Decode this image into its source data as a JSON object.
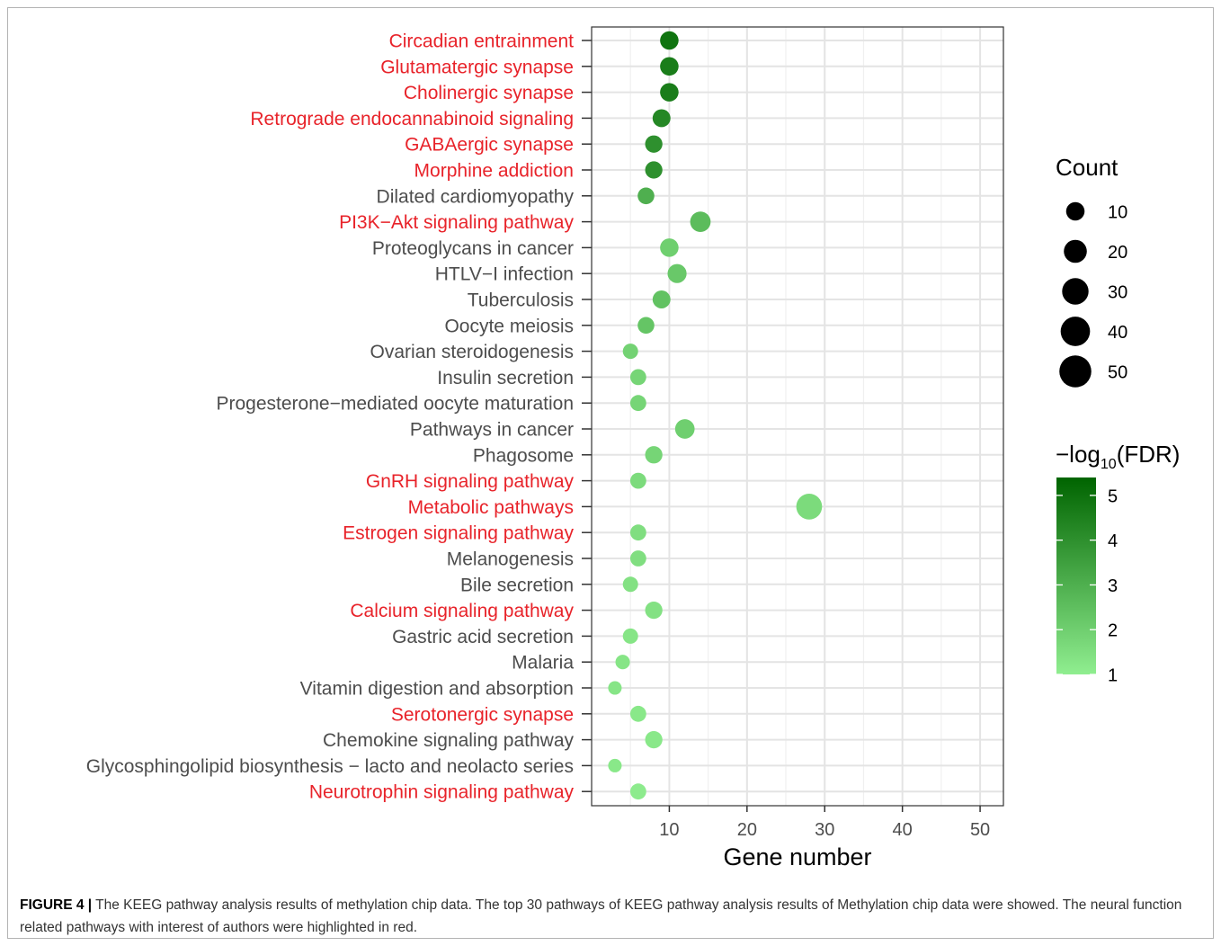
{
  "caption": {
    "label": "FIGURE 4 |",
    "text": "The KEEG pathway analysis results of methylation chip data. The top 30 pathways of KEEG pathway analysis results of Methylation chip data were showed. The neural function related pathways with interest of authors were highlighted in red."
  },
  "colors": {
    "highlight": "#e8232a",
    "normal": "#4d4d4d",
    "low": "#90ee90",
    "high": "#006400"
  },
  "chart_data": {
    "type": "scatter",
    "xlabel": "Gene number",
    "ylabel": "",
    "xlim": [
      0,
      53
    ],
    "xticks": [
      10,
      20,
      30,
      40,
      50
    ],
    "grid": true,
    "size_legend": {
      "title": "Count",
      "values": [
        10,
        20,
        30,
        40,
        50
      ]
    },
    "color_legend": {
      "title_prefix": "−log",
      "title_sub": "10",
      "title_suffix": "(FDR)",
      "range": [
        1,
        5.4
      ],
      "ticks": [
        5,
        4,
        3,
        2,
        1
      ]
    },
    "points": [
      {
        "pathway": "Circadian entrainment",
        "x": 10,
        "count": 10,
        "neg_log10_fdr": 4.9,
        "highlight": true
      },
      {
        "pathway": "Glutamatergic synapse",
        "x": 10,
        "count": 10,
        "neg_log10_fdr": 4.6,
        "highlight": true
      },
      {
        "pathway": "Cholinergic synapse",
        "x": 10,
        "count": 10,
        "neg_log10_fdr": 4.6,
        "highlight": true
      },
      {
        "pathway": "Retrograde endocannabinoid signaling",
        "x": 9,
        "count": 9,
        "neg_log10_fdr": 4.3,
        "highlight": true
      },
      {
        "pathway": "GABAergic synapse",
        "x": 8,
        "count": 8,
        "neg_log10_fdr": 4.0,
        "highlight": true
      },
      {
        "pathway": "Morphine addiction",
        "x": 8,
        "count": 8,
        "neg_log10_fdr": 4.0,
        "highlight": true
      },
      {
        "pathway": "Dilated cardiomyopathy",
        "x": 7,
        "count": 7,
        "neg_log10_fdr": 3.0,
        "highlight": false
      },
      {
        "pathway": "PI3K−Akt signaling pathway",
        "x": 14,
        "count": 14,
        "neg_log10_fdr": 2.6,
        "highlight": true
      },
      {
        "pathway": "Proteoglycans in cancer",
        "x": 10,
        "count": 10,
        "neg_log10_fdr": 2.0,
        "highlight": false
      },
      {
        "pathway": "HTLV−I infection",
        "x": 11,
        "count": 11,
        "neg_log10_fdr": 2.2,
        "highlight": false
      },
      {
        "pathway": "Tuberculosis",
        "x": 9,
        "count": 9,
        "neg_log10_fdr": 2.4,
        "highlight": false
      },
      {
        "pathway": "Oocyte meiosis",
        "x": 7,
        "count": 7,
        "neg_log10_fdr": 2.3,
        "highlight": false
      },
      {
        "pathway": "Ovarian steroidogenesis",
        "x": 5,
        "count": 5,
        "neg_log10_fdr": 1.9,
        "highlight": false
      },
      {
        "pathway": "Insulin secretion",
        "x": 6,
        "count": 6,
        "neg_log10_fdr": 1.8,
        "highlight": false
      },
      {
        "pathway": "Progesterone−mediated oocyte maturation",
        "x": 6,
        "count": 6,
        "neg_log10_fdr": 1.8,
        "highlight": false
      },
      {
        "pathway": "Pathways in cancer",
        "x": 12,
        "count": 12,
        "neg_log10_fdr": 2.0,
        "highlight": false
      },
      {
        "pathway": "Phagosome",
        "x": 8,
        "count": 8,
        "neg_log10_fdr": 1.8,
        "highlight": false
      },
      {
        "pathway": "GnRH signaling pathway",
        "x": 6,
        "count": 6,
        "neg_log10_fdr": 1.6,
        "highlight": true
      },
      {
        "pathway": "Metabolic pathways",
        "x": 28,
        "count": 28,
        "neg_log10_fdr": 1.6,
        "highlight": true
      },
      {
        "pathway": "Estrogen signaling pathway",
        "x": 6,
        "count": 6,
        "neg_log10_fdr": 1.5,
        "highlight": true
      },
      {
        "pathway": "Melanogenesis",
        "x": 6,
        "count": 6,
        "neg_log10_fdr": 1.5,
        "highlight": false
      },
      {
        "pathway": "Bile secretion",
        "x": 5,
        "count": 5,
        "neg_log10_fdr": 1.4,
        "highlight": false
      },
      {
        "pathway": "Calcium signaling pathway",
        "x": 8,
        "count": 8,
        "neg_log10_fdr": 1.4,
        "highlight": true
      },
      {
        "pathway": "Gastric acid secretion",
        "x": 5,
        "count": 5,
        "neg_log10_fdr": 1.3,
        "highlight": false
      },
      {
        "pathway": "Malaria",
        "x": 4,
        "count": 4,
        "neg_log10_fdr": 1.3,
        "highlight": false
      },
      {
        "pathway": "Vitamin digestion and absorption",
        "x": 3,
        "count": 3,
        "neg_log10_fdr": 1.3,
        "highlight": false
      },
      {
        "pathway": "Serotonergic synapse",
        "x": 6,
        "count": 6,
        "neg_log10_fdr": 1.2,
        "highlight": true
      },
      {
        "pathway": "Chemokine signaling pathway",
        "x": 8,
        "count": 8,
        "neg_log10_fdr": 1.2,
        "highlight": false
      },
      {
        "pathway": "Glycosphingolipid biosynthesis − lacto and neolacto series",
        "x": 3,
        "count": 3,
        "neg_log10_fdr": 1.2,
        "highlight": false
      },
      {
        "pathway": "Neurotrophin signaling pathway",
        "x": 6,
        "count": 6,
        "neg_log10_fdr": 1.1,
        "highlight": true
      }
    ]
  }
}
